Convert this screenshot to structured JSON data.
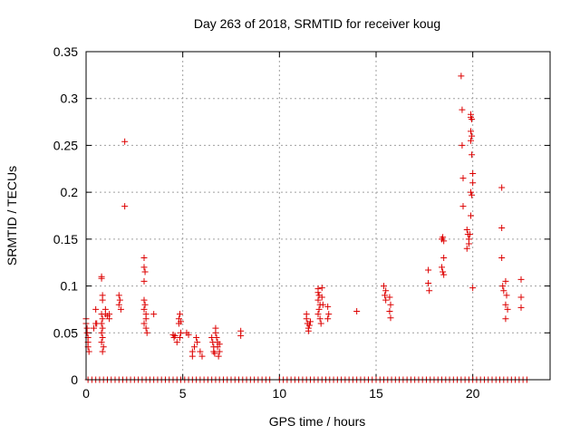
{
  "chart_data": {
    "type": "scatter",
    "title": "Day 263 of 2018, SRMTID for receiver koug",
    "xlabel": "GPS time / hours",
    "ylabel": "SRMTID / TECUs",
    "xlim": [
      0,
      24
    ],
    "ylim": [
      0,
      0.35
    ],
    "xticks": [
      0,
      5,
      10,
      15,
      20
    ],
    "xtick_labels": [
      "0",
      "5",
      "10",
      "15",
      "20"
    ],
    "yticks": [
      0,
      0.05,
      0.1,
      0.15,
      0.2,
      0.25,
      0.3,
      0.35
    ],
    "ytick_labels": [
      "0",
      "0.05",
      "0.1",
      "0.15",
      "0.2",
      "0.25",
      "0.3",
      "0.35"
    ],
    "grid": true,
    "marker": "+",
    "color": "#dd0000",
    "zero_series_x": [
      0.1,
      0.3,
      0.5,
      0.7,
      0.9,
      1.1,
      1.3,
      1.5,
      1.7,
      1.9,
      2.1,
      2.3,
      2.5,
      2.7,
      2.9,
      3.1,
      3.3,
      3.5,
      3.7,
      3.9,
      4.1,
      4.3,
      4.5,
      4.7,
      4.9,
      5.1,
      5.3,
      5.5,
      5.7,
      5.9,
      6.1,
      6.3,
      6.5,
      6.7,
      6.9,
      7.1,
      7.3,
      7.5,
      7.7,
      7.9,
      8.1,
      8.3,
      8.5,
      8.7,
      8.9,
      9.1,
      9.3,
      9.5,
      10.0,
      10.2,
      10.4,
      10.6,
      10.8,
      11.0,
      11.2,
      11.4,
      11.6,
      11.8,
      12.0,
      12.2,
      12.4,
      12.6,
      12.8,
      13.0,
      13.2,
      13.4,
      13.6,
      13.8,
      14.0,
      14.2,
      14.4,
      14.6,
      14.8,
      15.0,
      15.2,
      15.4,
      15.6,
      15.8,
      16.0,
      16.2,
      16.4,
      16.6,
      16.8,
      17.0,
      17.2,
      17.4,
      17.6,
      17.8,
      18.0,
      18.2,
      18.4,
      18.6,
      18.8,
      19.0,
      19.2,
      19.4,
      19.6,
      19.8,
      20.0,
      20.2,
      20.4,
      20.6,
      20.8,
      21.0,
      21.2,
      21.4,
      21.6,
      21.8,
      22.0,
      22.2,
      22.4,
      22.6,
      22.8
    ],
    "points": [
      [
        0.0,
        0.065
      ],
      [
        0.0,
        0.06
      ],
      [
        0.05,
        0.055
      ],
      [
        0.05,
        0.05
      ],
      [
        0.1,
        0.045
      ],
      [
        0.1,
        0.04
      ],
      [
        0.1,
        0.035
      ],
      [
        0.15,
        0.03
      ],
      [
        0.4,
        0.055
      ],
      [
        0.5,
        0.06
      ],
      [
        0.5,
        0.075
      ],
      [
        0.55,
        0.06
      ],
      [
        0.8,
        0.11
      ],
      [
        0.8,
        0.108
      ],
      [
        0.85,
        0.09
      ],
      [
        0.85,
        0.085
      ],
      [
        0.8,
        0.07
      ],
      [
        0.85,
        0.065
      ],
      [
        0.8,
        0.06
      ],
      [
        0.85,
        0.055
      ],
      [
        0.8,
        0.05
      ],
      [
        0.85,
        0.045
      ],
      [
        0.8,
        0.04
      ],
      [
        0.9,
        0.035
      ],
      [
        0.85,
        0.03
      ],
      [
        1.0,
        0.075
      ],
      [
        1.0,
        0.07
      ],
      [
        1.1,
        0.068
      ],
      [
        1.2,
        0.065
      ],
      [
        1.2,
        0.07
      ],
      [
        1.7,
        0.09
      ],
      [
        1.75,
        0.085
      ],
      [
        1.7,
        0.08
      ],
      [
        1.8,
        0.075
      ],
      [
        2.0,
        0.254
      ],
      [
        2.0,
        0.185
      ],
      [
        3.0,
        0.13
      ],
      [
        3.0,
        0.12
      ],
      [
        3.05,
        0.115
      ],
      [
        3.0,
        0.105
      ],
      [
        3.0,
        0.085
      ],
      [
        3.05,
        0.08
      ],
      [
        3.0,
        0.075
      ],
      [
        3.1,
        0.07
      ],
      [
        3.1,
        0.065
      ],
      [
        3.0,
        0.06
      ],
      [
        3.1,
        0.055
      ],
      [
        3.15,
        0.05
      ],
      [
        3.5,
        0.07
      ],
      [
        4.5,
        0.048
      ],
      [
        4.55,
        0.045
      ],
      [
        4.6,
        0.047
      ],
      [
        4.7,
        0.04
      ],
      [
        4.8,
        0.065
      ],
      [
        4.8,
        0.06
      ],
      [
        4.85,
        0.07
      ],
      [
        4.9,
        0.062
      ],
      [
        4.9,
        0.05
      ],
      [
        4.85,
        0.045
      ],
      [
        5.2,
        0.05
      ],
      [
        5.3,
        0.048
      ],
      [
        5.5,
        0.03
      ],
      [
        5.5,
        0.025
      ],
      [
        5.6,
        0.035
      ],
      [
        5.7,
        0.045
      ],
      [
        5.75,
        0.04
      ],
      [
        5.9,
        0.03
      ],
      [
        6.0,
        0.025
      ],
      [
        6.5,
        0.045
      ],
      [
        6.55,
        0.04
      ],
      [
        6.6,
        0.035
      ],
      [
        6.6,
        0.03
      ],
      [
        6.65,
        0.028
      ],
      [
        6.7,
        0.055
      ],
      [
        6.7,
        0.05
      ],
      [
        6.75,
        0.045
      ],
      [
        6.8,
        0.04
      ],
      [
        6.8,
        0.035
      ],
      [
        6.85,
        0.025
      ],
      [
        6.9,
        0.03
      ],
      [
        6.9,
        0.038
      ],
      [
        8.0,
        0.052
      ],
      [
        8.0,
        0.047
      ],
      [
        11.4,
        0.07
      ],
      [
        11.4,
        0.065
      ],
      [
        11.45,
        0.06
      ],
      [
        11.5,
        0.055
      ],
      [
        11.5,
        0.052
      ],
      [
        11.55,
        0.058
      ],
      [
        11.6,
        0.062
      ],
      [
        12.0,
        0.097
      ],
      [
        12.0,
        0.093
      ],
      [
        12.05,
        0.09
      ],
      [
        12.0,
        0.085
      ],
      [
        12.1,
        0.08
      ],
      [
        12.05,
        0.075
      ],
      [
        12.0,
        0.07
      ],
      [
        12.1,
        0.065
      ],
      [
        12.15,
        0.06
      ],
      [
        12.2,
        0.098
      ],
      [
        12.2,
        0.088
      ],
      [
        12.25,
        0.08
      ],
      [
        12.5,
        0.078
      ],
      [
        12.55,
        0.07
      ],
      [
        12.5,
        0.065
      ],
      [
        14.0,
        0.073
      ],
      [
        15.4,
        0.1
      ],
      [
        15.5,
        0.095
      ],
      [
        15.45,
        0.09
      ],
      [
        15.5,
        0.085
      ],
      [
        15.7,
        0.088
      ],
      [
        15.75,
        0.08
      ],
      [
        15.7,
        0.073
      ],
      [
        15.75,
        0.066
      ],
      [
        17.7,
        0.117
      ],
      [
        17.7,
        0.103
      ],
      [
        17.75,
        0.095
      ],
      [
        18.4,
        0.15
      ],
      [
        18.45,
        0.152
      ],
      [
        18.5,
        0.148
      ],
      [
        18.5,
        0.13
      ],
      [
        18.4,
        0.12
      ],
      [
        18.45,
        0.115
      ],
      [
        18.5,
        0.112
      ],
      [
        19.4,
        0.324
      ],
      [
        19.45,
        0.288
      ],
      [
        19.45,
        0.25
      ],
      [
        19.5,
        0.215
      ],
      [
        19.5,
        0.185
      ],
      [
        19.7,
        0.16
      ],
      [
        19.75,
        0.155
      ],
      [
        19.8,
        0.15
      ],
      [
        19.8,
        0.145
      ],
      [
        19.7,
        0.14
      ],
      [
        19.9,
        0.28
      ],
      [
        19.9,
        0.283
      ],
      [
        19.95,
        0.278
      ],
      [
        19.9,
        0.265
      ],
      [
        19.95,
        0.26
      ],
      [
        19.9,
        0.255
      ],
      [
        19.95,
        0.24
      ],
      [
        20.0,
        0.22
      ],
      [
        20.0,
        0.21
      ],
      [
        19.9,
        0.2
      ],
      [
        19.95,
        0.197
      ],
      [
        19.9,
        0.175
      ],
      [
        19.85,
        0.155
      ],
      [
        20.0,
        0.098
      ],
      [
        21.5,
        0.205
      ],
      [
        21.5,
        0.162
      ],
      [
        21.5,
        0.13
      ],
      [
        21.55,
        0.1
      ],
      [
        21.6,
        0.095
      ],
      [
        21.7,
        0.105
      ],
      [
        21.75,
        0.09
      ],
      [
        21.7,
        0.08
      ],
      [
        21.8,
        0.075
      ],
      [
        21.7,
        0.065
      ],
      [
        22.5,
        0.107
      ],
      [
        22.5,
        0.088
      ],
      [
        22.5,
        0.077
      ]
    ]
  }
}
